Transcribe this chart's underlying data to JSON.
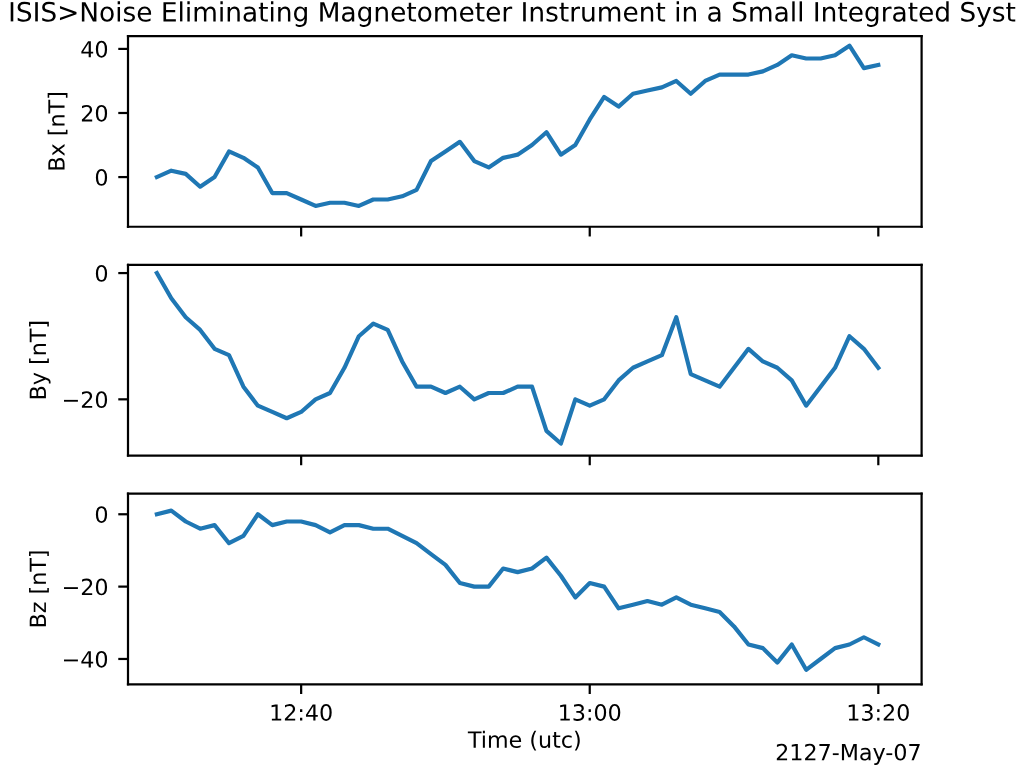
{
  "chart_data": [
    {
      "type": "line",
      "title": "ISIS>Noise Eliminating Magnetometer Instrument in a Small Integrated Syst",
      "ylabel": "Bx [nT]",
      "tick_labels": "y",
      "x": [
        "2127-05-07T12:30",
        "2127-05-07T12:31",
        "2127-05-07T12:32",
        "2127-05-07T12:33",
        "2127-05-07T12:34",
        "2127-05-07T12:35",
        "2127-05-07T12:36",
        "2127-05-07T12:37",
        "2127-05-07T12:38",
        "2127-05-07T12:39",
        "2127-05-07T12:40",
        "2127-05-07T12:41",
        "2127-05-07T12:42",
        "2127-05-07T12:43",
        "2127-05-07T12:44",
        "2127-05-07T12:45",
        "2127-05-07T12:46",
        "2127-05-07T12:47",
        "2127-05-07T12:48",
        "2127-05-07T12:49",
        "2127-05-07T12:50",
        "2127-05-07T12:51",
        "2127-05-07T12:52",
        "2127-05-07T12:53",
        "2127-05-07T12:54",
        "2127-05-07T12:55",
        "2127-05-07T12:56",
        "2127-05-07T12:57",
        "2127-05-07T12:58",
        "2127-05-07T12:59",
        "2127-05-07T13:00",
        "2127-05-07T13:01",
        "2127-05-07T13:02",
        "2127-05-07T13:03",
        "2127-05-07T13:04",
        "2127-05-07T13:05",
        "2127-05-07T13:06",
        "2127-05-07T13:07",
        "2127-05-07T13:08",
        "2127-05-07T13:09",
        "2127-05-07T13:10",
        "2127-05-07T13:11",
        "2127-05-07T13:12",
        "2127-05-07T13:13",
        "2127-05-07T13:14",
        "2127-05-07T13:15",
        "2127-05-07T13:16",
        "2127-05-07T13:17",
        "2127-05-07T13:18",
        "2127-05-07T13:19",
        "2127-05-07T13:20"
      ],
      "series": [
        {
          "color": "#1f77b4",
          "values": [
            0,
            2,
            1,
            -3,
            0,
            8,
            6,
            3,
            -5,
            -5,
            -7,
            -9,
            -8,
            -8,
            -9,
            -7,
            -7,
            -6,
            -4,
            5,
            8,
            11,
            5,
            3,
            6,
            7,
            10,
            14,
            7,
            10,
            18,
            25,
            22,
            26,
            27,
            28,
            30,
            26,
            30,
            32,
            32,
            32,
            33,
            35,
            38,
            37,
            37,
            38,
            41,
            34,
            35
          ]
        }
      ],
      "xlim": [
        "2127-05-07T12:28",
        "2127-05-07T13:23"
      ],
      "xticks": [
        {
          "value": "2127-05-07T12:40",
          "label": null
        },
        {
          "value": "2127-05-07T13:00",
          "label": null
        },
        {
          "value": "2127-05-07T13:20",
          "label": null
        }
      ],
      "ylim": [
        -15.5,
        44
      ],
      "yticks": [
        0,
        20,
        40
      ]
    },
    {
      "type": "line",
      "ylabel": "By [nT]",
      "tick_labels": "y",
      "x": [
        "2127-05-07T12:30",
        "2127-05-07T12:31",
        "2127-05-07T12:32",
        "2127-05-07T12:33",
        "2127-05-07T12:34",
        "2127-05-07T12:35",
        "2127-05-07T12:36",
        "2127-05-07T12:37",
        "2127-05-07T12:38",
        "2127-05-07T12:39",
        "2127-05-07T12:40",
        "2127-05-07T12:41",
        "2127-05-07T12:42",
        "2127-05-07T12:43",
        "2127-05-07T12:44",
        "2127-05-07T12:45",
        "2127-05-07T12:46",
        "2127-05-07T12:47",
        "2127-05-07T12:48",
        "2127-05-07T12:49",
        "2127-05-07T12:50",
        "2127-05-07T12:51",
        "2127-05-07T12:52",
        "2127-05-07T12:53",
        "2127-05-07T12:54",
        "2127-05-07T12:55",
        "2127-05-07T12:56",
        "2127-05-07T12:57",
        "2127-05-07T12:58",
        "2127-05-07T12:59",
        "2127-05-07T13:00",
        "2127-05-07T13:01",
        "2127-05-07T13:02",
        "2127-05-07T13:03",
        "2127-05-07T13:04",
        "2127-05-07T13:05",
        "2127-05-07T13:06",
        "2127-05-07T13:07",
        "2127-05-07T13:08",
        "2127-05-07T13:09",
        "2127-05-07T13:10",
        "2127-05-07T13:11",
        "2127-05-07T13:12",
        "2127-05-07T13:13",
        "2127-05-07T13:14",
        "2127-05-07T13:15",
        "2127-05-07T13:16",
        "2127-05-07T13:17",
        "2127-05-07T13:18",
        "2127-05-07T13:19",
        "2127-05-07T13:20"
      ],
      "series": [
        {
          "color": "#1f77b4",
          "values": [
            0,
            -4,
            -7,
            -9,
            -12,
            -13,
            -18,
            -21,
            -22,
            -23,
            -22,
            -20,
            -19,
            -15,
            -10,
            -8,
            -9,
            -14,
            -18,
            -18,
            -19,
            -18,
            -20,
            -19,
            -19,
            -18,
            -18,
            -25,
            -27,
            -20,
            -21,
            -20,
            -17,
            -15,
            -14,
            -13,
            -7,
            -16,
            -17,
            -18,
            -15,
            -12,
            -14,
            -15,
            -17,
            -21,
            -18,
            -15,
            -10,
            -12,
            -15
          ]
        }
      ],
      "xlim": [
        "2127-05-07T12:28",
        "2127-05-07T13:23"
      ],
      "xticks": [
        {
          "value": "2127-05-07T12:40",
          "label": null
        },
        {
          "value": "2127-05-07T13:00",
          "label": null
        },
        {
          "value": "2127-05-07T13:20",
          "label": null
        }
      ],
      "ylim": [
        -28.9,
        1.3
      ],
      "yticks": [
        {
          "value": 0,
          "label": "0"
        },
        {
          "value": -20,
          "label": "−20"
        }
      ]
    },
    {
      "type": "line",
      "ylabel": "Bz [nT]",
      "xlabel": "Time (utc)",
      "annotations": [
        "2127-May-07"
      ],
      "x": [
        "2127-05-07T12:30",
        "2127-05-07T12:31",
        "2127-05-07T12:32",
        "2127-05-07T12:33",
        "2127-05-07T12:34",
        "2127-05-07T12:35",
        "2127-05-07T12:36",
        "2127-05-07T12:37",
        "2127-05-07T12:38",
        "2127-05-07T12:39",
        "2127-05-07T12:40",
        "2127-05-07T12:41",
        "2127-05-07T12:42",
        "2127-05-07T12:43",
        "2127-05-07T12:44",
        "2127-05-07T12:45",
        "2127-05-07T12:46",
        "2127-05-07T12:47",
        "2127-05-07T12:48",
        "2127-05-07T12:49",
        "2127-05-07T12:50",
        "2127-05-07T12:51",
        "2127-05-07T12:52",
        "2127-05-07T12:53",
        "2127-05-07T12:54",
        "2127-05-07T12:55",
        "2127-05-07T12:56",
        "2127-05-07T12:57",
        "2127-05-07T12:58",
        "2127-05-07T12:59",
        "2127-05-07T13:00",
        "2127-05-07T13:01",
        "2127-05-07T13:02",
        "2127-05-07T13:03",
        "2127-05-07T13:04",
        "2127-05-07T13:05",
        "2127-05-07T13:06",
        "2127-05-07T13:07",
        "2127-05-07T13:08",
        "2127-05-07T13:09",
        "2127-05-07T13:10",
        "2127-05-07T13:11",
        "2127-05-07T13:12",
        "2127-05-07T13:13",
        "2127-05-07T13:14",
        "2127-05-07T13:15",
        "2127-05-07T13:16",
        "2127-05-07T13:17",
        "2127-05-07T13:18",
        "2127-05-07T13:19",
        "2127-05-07T13:20"
      ],
      "series": [
        {
          "color": "#1f77b4",
          "values": [
            0,
            1,
            -2,
            -4,
            -3,
            -8,
            -6,
            0,
            -3,
            -2,
            -2,
            -3,
            -5,
            -3,
            -3,
            -4,
            -4,
            -6,
            -8,
            -11,
            -14,
            -19,
            -20,
            -20,
            -15,
            -16,
            -15,
            -12,
            -17,
            -23,
            -19,
            -20,
            -26,
            -25,
            -24,
            -25,
            -23,
            -25,
            -26,
            -27,
            -31,
            -36,
            -37,
            -41,
            -36,
            -43,
            -40,
            -37,
            -36,
            -34,
            -36
          ]
        }
      ],
      "xlim": [
        "2127-05-07T12:28",
        "2127-05-07T13:23"
      ],
      "xticks": [
        {
          "value": "2127-05-07T12:40",
          "label": "12:40"
        },
        {
          "value": "2127-05-07T13:00",
          "label": "13:00"
        },
        {
          "value": "2127-05-07T13:20",
          "label": "13:20"
        }
      ],
      "ylim": [
        -47,
        5.7
      ],
      "yticks": [
        {
          "value": 0,
          "label": "0"
        },
        {
          "value": -20,
          "label": "−20"
        },
        {
          "value": -40,
          "label": "−40"
        }
      ]
    }
  ]
}
